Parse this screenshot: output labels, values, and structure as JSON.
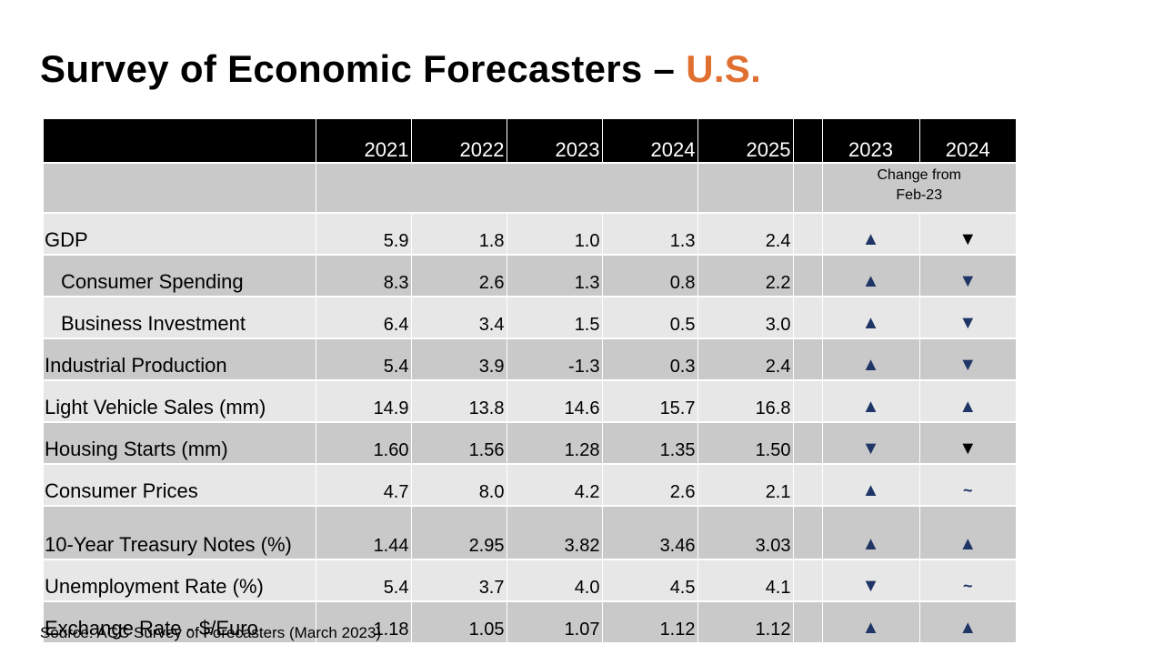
{
  "title": {
    "main": "Survey of Economic Forecasters – ",
    "accent": "U.S."
  },
  "colors": {
    "accent": "#E07030",
    "arrow_navy": "#1F3566",
    "header_bg": "#000000",
    "row_dark": "#C9C9C9",
    "row_light": "#E7E7E7"
  },
  "table": {
    "year_headers": [
      "2021",
      "2022",
      "2023",
      "2024",
      "2025"
    ],
    "change_headers": [
      "2023",
      "2024"
    ],
    "change_note_line1": "Change from",
    "change_note_line2": "Feb-23",
    "rows": [
      {
        "label": "GDP",
        "indent": false,
        "values": [
          "5.9",
          "1.8",
          "1.0",
          "1.3",
          "2.4"
        ],
        "change": [
          "up",
          "down"
        ],
        "change_colors": [
          "navy",
          "black"
        ]
      },
      {
        "label": "Consumer Spending",
        "indent": true,
        "values": [
          "8.3",
          "2.6",
          "1.3",
          "0.8",
          "2.2"
        ],
        "change": [
          "up",
          "down"
        ],
        "change_colors": [
          "navy",
          "navy"
        ]
      },
      {
        "label": "Business Investment",
        "indent": true,
        "values": [
          "6.4",
          "3.4",
          "1.5",
          "0.5",
          "3.0"
        ],
        "change": [
          "up",
          "down"
        ],
        "change_colors": [
          "navy",
          "navy"
        ]
      },
      {
        "label": "Industrial Production",
        "indent": false,
        "values": [
          "5.4",
          "3.9",
          "-1.3",
          "0.3",
          "2.4"
        ],
        "change": [
          "up",
          "down"
        ],
        "change_colors": [
          "navy",
          "navy"
        ]
      },
      {
        "label": "Light Vehicle Sales (mm)",
        "indent": false,
        "values": [
          "14.9",
          "13.8",
          "14.6",
          "15.7",
          "16.8"
        ],
        "change": [
          "up",
          "up"
        ],
        "change_colors": [
          "navy",
          "navy"
        ]
      },
      {
        "label": "Housing Starts (mm)",
        "indent": false,
        "values": [
          "1.60",
          "1.56",
          "1.28",
          "1.35",
          "1.50"
        ],
        "change": [
          "down",
          "down"
        ],
        "change_colors": [
          "navy",
          "black"
        ]
      },
      {
        "label": "Consumer Prices",
        "indent": false,
        "values": [
          "4.7",
          "8.0",
          "4.2",
          "2.6",
          "2.1"
        ],
        "change": [
          "up",
          "same"
        ],
        "change_colors": [
          "navy",
          "navy"
        ]
      },
      {
        "label": "10-Year Treasury Notes (%)",
        "indent": false,
        "values": [
          "1.44",
          "2.95",
          "3.82",
          "3.46",
          "3.03"
        ],
        "change": [
          "up",
          "up"
        ],
        "change_colors": [
          "navy",
          "navy"
        ]
      },
      {
        "label": "Unemployment Rate (%)",
        "indent": false,
        "values": [
          "5.4",
          "3.7",
          "4.0",
          "4.5",
          "4.1"
        ],
        "change": [
          "down",
          "same"
        ],
        "change_colors": [
          "navy",
          "navy"
        ]
      },
      {
        "label": "Exchange Rate - $/Euro",
        "indent": false,
        "values": [
          "1.18",
          "1.05",
          "1.07",
          "1.12",
          "1.12"
        ],
        "change": [
          "up",
          "up"
        ],
        "change_colors": [
          "navy",
          "navy"
        ]
      }
    ]
  },
  "source": "Source: ACC Survey of Forecasters (March 2023)"
}
